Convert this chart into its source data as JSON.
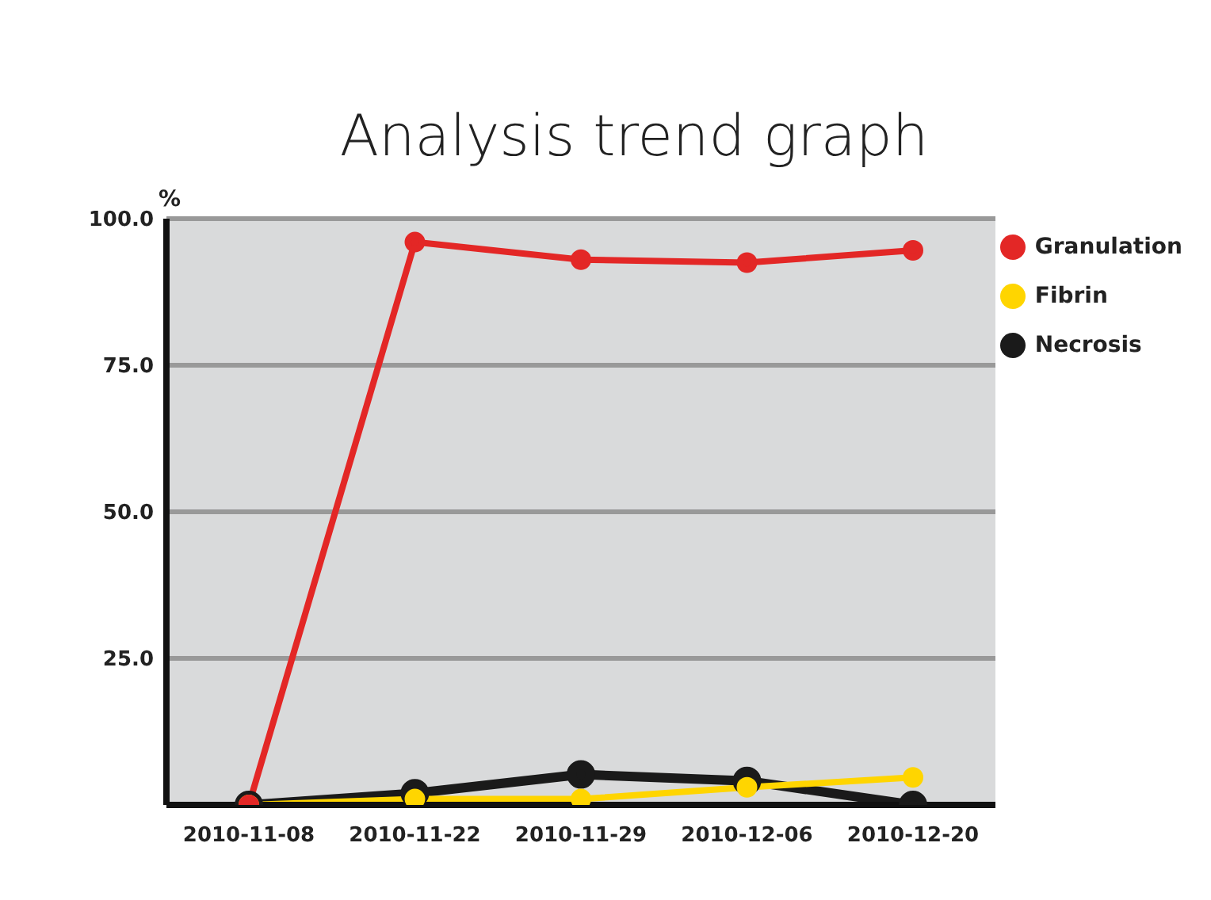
{
  "chart_data": {
    "type": "line",
    "title": "Analysis trend graph",
    "ylabel": "%",
    "categories": [
      "2010-11-08",
      "2010-11-22",
      "2010-11-29",
      "2010-12-06",
      "2010-12-20"
    ],
    "series": [
      {
        "name": "Granulation",
        "color": "#e32726",
        "values": [
          0,
          96,
          93,
          92.5,
          94.6
        ]
      },
      {
        "name": "Fibrin",
        "color": "#ffd500",
        "values": [
          0,
          1,
          1,
          3,
          4.7
        ]
      },
      {
        "name": "Necrosis",
        "color": "#1a1a1a",
        "values": [
          0,
          2,
          5.2,
          4.1,
          0
        ]
      }
    ],
    "ylim": [
      0,
      100
    ],
    "yticks": [
      {
        "value": 0,
        "label": null
      },
      {
        "value": 25,
        "label": "25.0"
      },
      {
        "value": 50,
        "label": "50.0"
      },
      {
        "value": 75,
        "label": "75.0"
      },
      {
        "value": 100,
        "label": "100.0"
      }
    ],
    "grid": "y",
    "legend": "top right",
    "marker": "circle",
    "line_style": "solid"
  }
}
